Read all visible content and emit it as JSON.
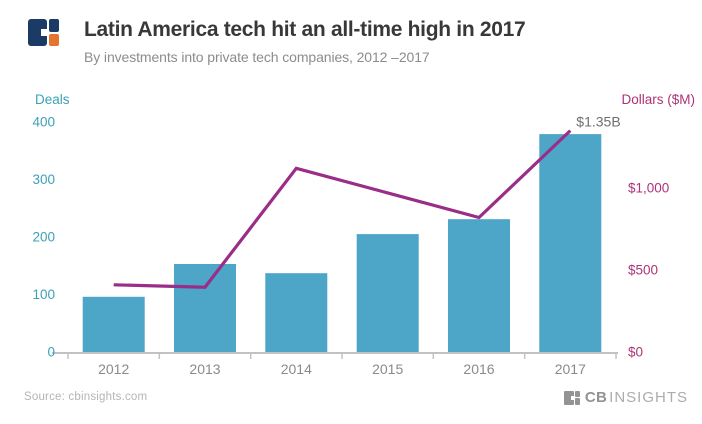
{
  "header": {
    "title": "Latin America tech hit an all-time high in 2017",
    "subtitle": "By investments into private tech companies, 2012 –2017"
  },
  "chart_data": {
    "type": "bar",
    "subtype": "combo-bar-line",
    "categories": [
      "2012",
      "2013",
      "2014",
      "2015",
      "2016",
      "2017"
    ],
    "series": [
      {
        "name": "Deals",
        "type": "bar",
        "axis": "left",
        "values": [
          96,
          153,
          137,
          205,
          231,
          379
        ]
      },
      {
        "name": "Dollars ($M)",
        "type": "line",
        "axis": "right",
        "values": [
          410,
          395,
          1120,
          970,
          820,
          1350
        ]
      }
    ],
    "title": "Latin America tech hit an all-time high in 2017",
    "xlabel": "",
    "left_axis": {
      "label": "Deals",
      "ticks": [
        400,
        300,
        200,
        100,
        0
      ],
      "range": [
        0,
        400
      ]
    },
    "right_axis": {
      "label": "Dollars ($M)",
      "ticks": [
        "$1,000",
        "$500",
        "$0"
      ],
      "tick_values": [
        1000,
        500,
        0
      ],
      "range": [
        0,
        1400
      ]
    },
    "annotation": {
      "text": "$1.35B",
      "category": "2017",
      "series": "Dollars ($M)",
      "value": 1350
    },
    "grid": false,
    "legend_position": "none"
  },
  "colors": {
    "bar": "#4DA5C8",
    "line": "#9A2D87",
    "left_axis": "#3AA2B6",
    "right_axis": "#AF3278",
    "title": "#383838",
    "subtitle": "#8C8C8C",
    "axis_line": "#C2C2C2",
    "x_labels": "#8A8A8A",
    "annotation": "#6F6F6F",
    "source": "#B5B5B5",
    "footer_gray": "#939393",
    "footer_light": "#ACACAC",
    "logo_navy": "#1B3A66",
    "logo_orange": "#E4742E"
  },
  "footer": {
    "source": "Source: cbinsights.com",
    "brand_cb": "CB",
    "brand_insights": "INSIGHTS"
  }
}
